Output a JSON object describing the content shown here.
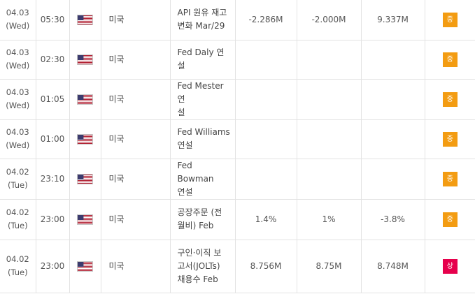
{
  "colors": {
    "importance_mid": "#f39c12",
    "importance_high": "#e6004c",
    "grid_line": "#e3e3e3"
  },
  "flag_icon": "us-flag-icon",
  "rows": [
    {
      "date": "04.03",
      "day": "(Wed)",
      "time": "05:30",
      "country": "미국",
      "event": [
        "API 원유 재고",
        "변화 Mar/29"
      ],
      "actual": "-2.286M",
      "forecast": "-2.000M",
      "previous": "9.337M",
      "importance": "중",
      "level": "mid"
    },
    {
      "date": "04.03",
      "day": "(Wed)",
      "time": "02:30",
      "country": "미국",
      "event": [
        "Fed Daly 연설"
      ],
      "actual": "",
      "forecast": "",
      "previous": "",
      "importance": "중",
      "level": "mid"
    },
    {
      "date": "04.03",
      "day": "(Wed)",
      "time": "01:05",
      "country": "미국",
      "event": [
        "Fed Mester 연",
        "설"
      ],
      "actual": "",
      "forecast": "",
      "previous": "",
      "importance": "중",
      "level": "mid"
    },
    {
      "date": "04.03",
      "day": "(Wed)",
      "time": "01:00",
      "country": "미국",
      "event": [
        "Fed Williams",
        "연설"
      ],
      "actual": "",
      "forecast": "",
      "previous": "",
      "importance": "중",
      "level": "mid"
    },
    {
      "date": "04.02",
      "day": "(Tue)",
      "time": "23:10",
      "country": "미국",
      "event": [
        "Fed Bowman",
        "연설"
      ],
      "actual": "",
      "forecast": "",
      "previous": "",
      "importance": "중",
      "level": "mid"
    },
    {
      "date": "04.02",
      "day": "(Tue)",
      "time": "23:00",
      "country": "미국",
      "event": [
        "공장주문 (전",
        "월비) Feb"
      ],
      "actual": "1.4%",
      "forecast": "1%",
      "previous": "-3.8%",
      "importance": "중",
      "level": "mid"
    },
    {
      "date": "04.02",
      "day": "(Tue)",
      "time": "23:00",
      "country": "미국",
      "event": [
        "구인·이직 보",
        "고서(JOLTs)",
        "채용수 Feb"
      ],
      "actual": "8.756M",
      "forecast": "8.75M",
      "previous": "8.748M",
      "importance": "상",
      "level": "high"
    }
  ]
}
